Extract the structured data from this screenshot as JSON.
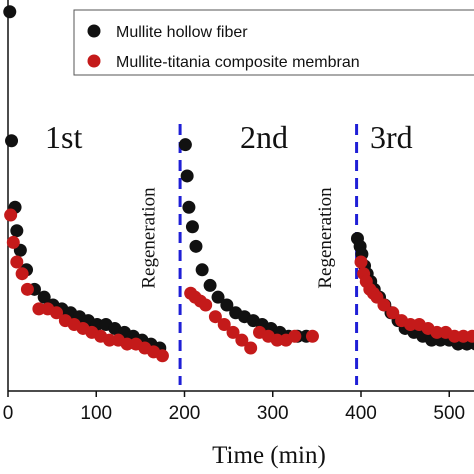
{
  "chart_data": {
    "type": "scatter",
    "xlabel": "Time (min)",
    "xlim": [
      0,
      560
    ],
    "xticks": [
      0,
      100,
      200,
      300,
      400,
      500
    ],
    "ylim": [
      0,
      1
    ],
    "legend_placement": "top-right",
    "colors": {
      "black_series": "#111111",
      "red_series": "#c41a1a",
      "divider": "#1f1fd6"
    },
    "series": [
      {
        "name": "Mullite hollow fiber",
        "x": [
          2,
          4,
          8,
          10,
          14,
          21,
          30,
          41,
          51,
          61,
          71,
          81,
          91,
          101,
          111,
          121,
          132,
          142,
          152,
          162,
          172,
          201,
          203,
          205,
          209,
          213,
          220,
          229,
          238,
          248,
          258,
          268,
          278,
          288,
          298,
          308,
          318,
          328,
          338,
          396,
          399,
          401,
          404,
          407,
          411,
          415,
          421,
          427,
          434,
          442,
          450,
          460,
          470,
          480,
          490,
          500,
          510,
          520,
          530,
          540,
          550
        ],
        "y": [
          0.97,
          0.64,
          0.47,
          0.41,
          0.36,
          0.31,
          0.26,
          0.24,
          0.22,
          0.21,
          0.2,
          0.19,
          0.18,
          0.17,
          0.17,
          0.16,
          0.15,
          0.14,
          0.13,
          0.12,
          0.11,
          0.63,
          0.55,
          0.47,
          0.42,
          0.37,
          0.31,
          0.27,
          0.24,
          0.22,
          0.2,
          0.19,
          0.18,
          0.17,
          0.16,
          0.15,
          0.14,
          0.14,
          0.14,
          0.39,
          0.37,
          0.35,
          0.32,
          0.3,
          0.28,
          0.26,
          0.24,
          0.22,
          0.2,
          0.18,
          0.16,
          0.15,
          0.14,
          0.13,
          0.13,
          0.13,
          0.12,
          0.12,
          0.12,
          0.11,
          0.11
        ]
      },
      {
        "name": "Mullite-titania composite membran",
        "x": [
          3,
          6,
          10,
          16,
          22,
          35,
          45,
          55,
          65,
          75,
          85,
          95,
          105,
          115,
          125,
          135,
          145,
          155,
          165,
          175,
          207,
          212,
          218,
          224,
          235,
          245,
          255,
          265,
          275,
          285,
          295,
          305,
          315,
          325,
          345,
          400,
          403,
          406,
          410,
          414,
          418,
          426,
          436,
          446,
          456,
          466,
          476,
          486,
          496,
          506,
          516,
          526,
          536,
          546
        ],
        "y": [
          0.45,
          0.38,
          0.33,
          0.3,
          0.26,
          0.21,
          0.21,
          0.2,
          0.18,
          0.17,
          0.16,
          0.15,
          0.14,
          0.13,
          0.13,
          0.12,
          0.12,
          0.11,
          0.1,
          0.09,
          0.25,
          0.24,
          0.23,
          0.22,
          0.19,
          0.17,
          0.15,
          0.13,
          0.11,
          0.15,
          0.14,
          0.13,
          0.13,
          0.14,
          0.14,
          0.33,
          0.3,
          0.28,
          0.26,
          0.25,
          0.24,
          0.22,
          0.2,
          0.18,
          0.17,
          0.17,
          0.16,
          0.15,
          0.15,
          0.14,
          0.14,
          0.14,
          0.13,
          0.13
        ]
      }
    ],
    "cycle_labels": [
      "1st",
      "2nd",
      "3rd"
    ],
    "annotations": [
      {
        "text": "Regeneration",
        "x": 190
      },
      {
        "text": "Regeneration",
        "x": 390
      }
    ],
    "dividers_x": [
      195,
      395
    ]
  }
}
